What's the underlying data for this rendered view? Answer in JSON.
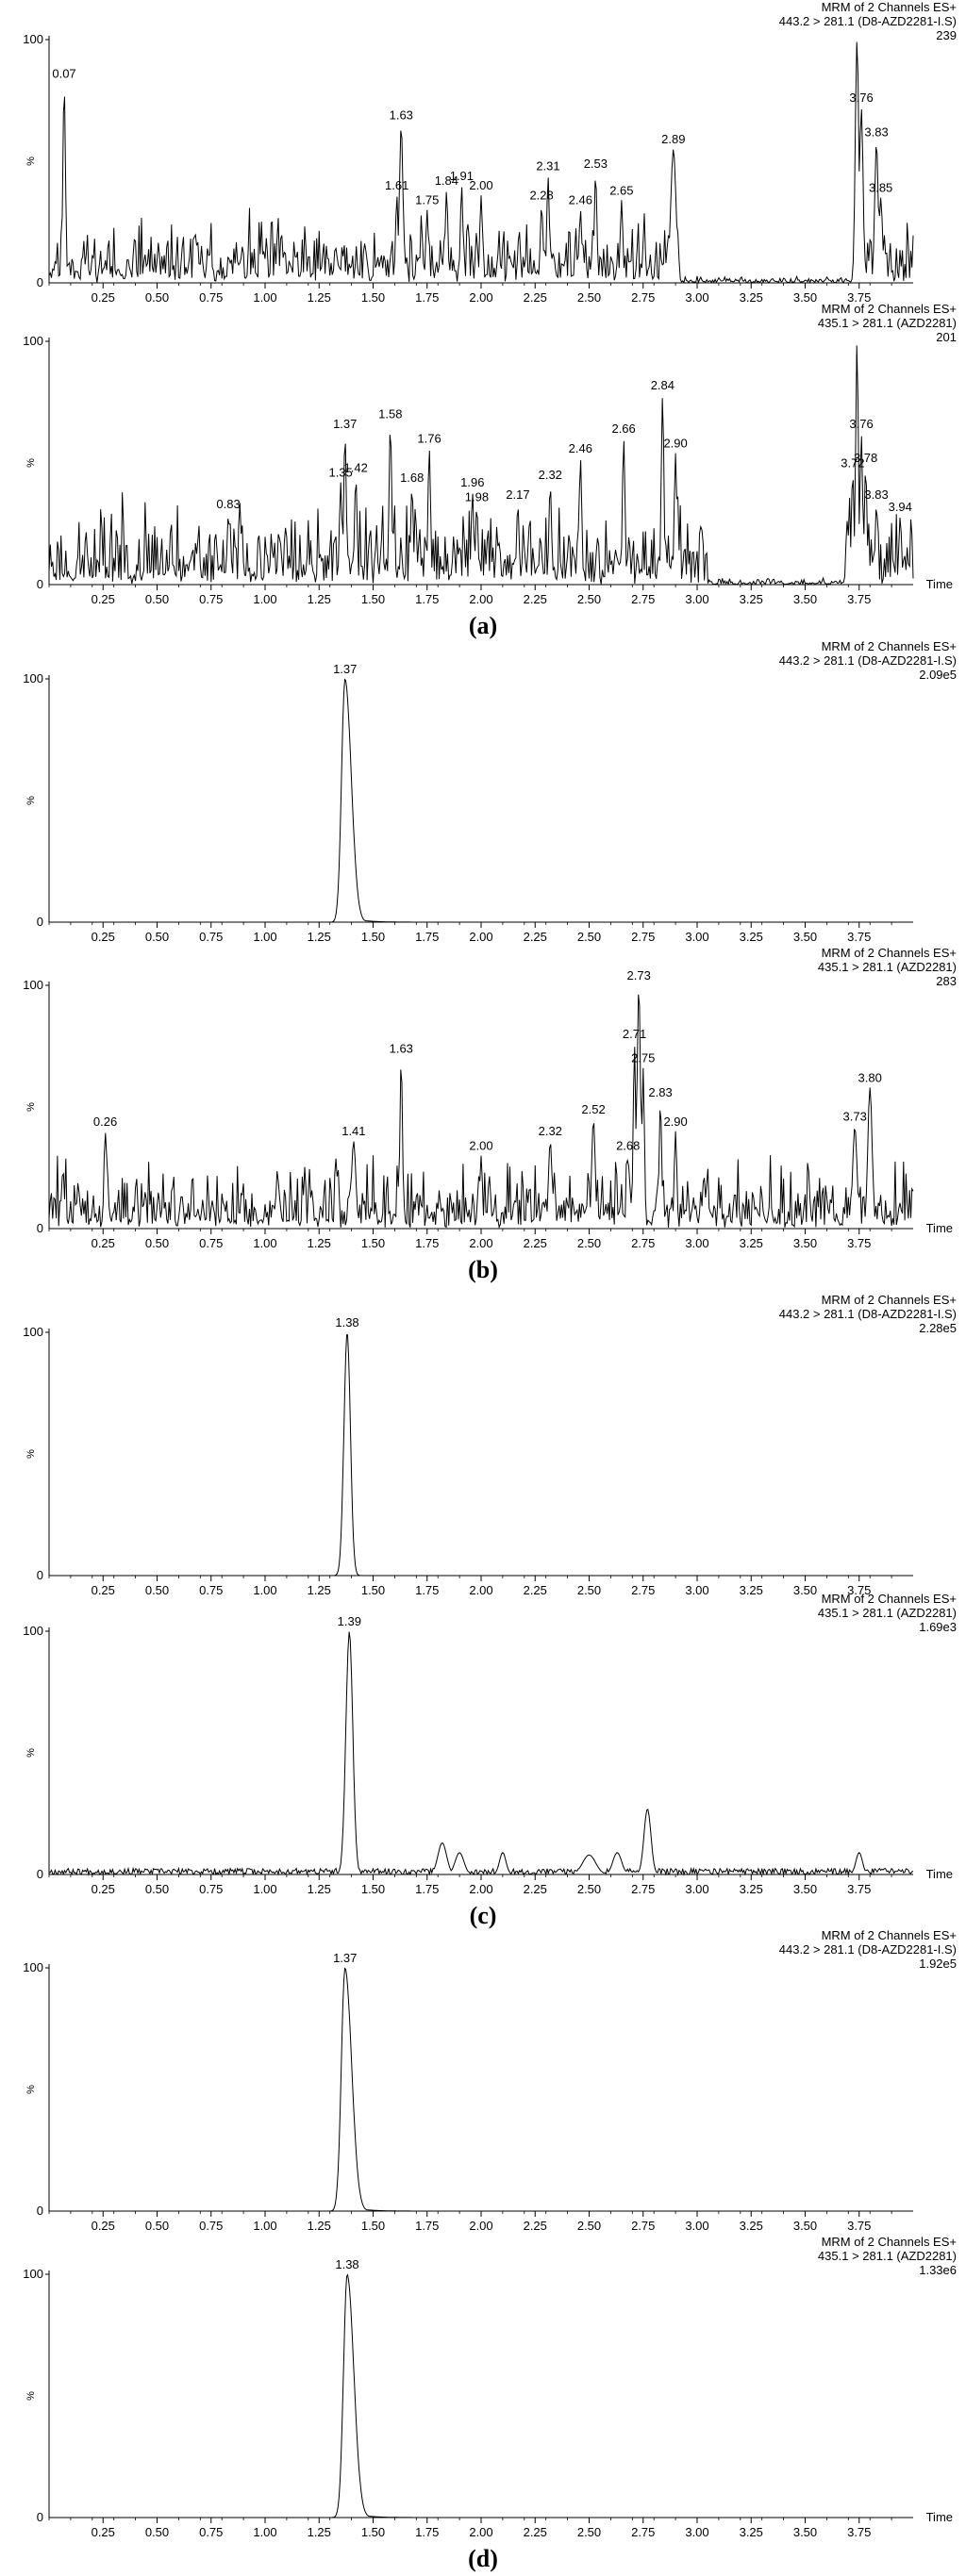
{
  "axis": {
    "x_ticks": [
      "0.25",
      "0.50",
      "0.75",
      "1.00",
      "1.25",
      "1.50",
      "1.75",
      "2.00",
      "2.25",
      "2.50",
      "2.75",
      "3.00",
      "3.25",
      "3.50",
      "3.75"
    ],
    "xlim": [
      0.0,
      4.0
    ],
    "y_ticks": [
      "0",
      "%",
      "100"
    ],
    "ylim": [
      0,
      100
    ],
    "time_label": "Time"
  },
  "chart_data": [
    {
      "type": "line",
      "panel": "a",
      "caption": "(a)",
      "title": "MRM of 2 Channels ES+",
      "transition": "443.2 > 281.1 (D8-AZD2281-I.S)",
      "intensity": "239",
      "show_time_label": false,
      "trace": "noise",
      "seed": 11,
      "noise_level": 12,
      "peaks": [
        {
          "rt": 0.07,
          "height": 82,
          "width": 0.006,
          "label": "0.07"
        },
        {
          "rt": 1.61,
          "height": 36,
          "width": 0.006,
          "label": "1.61"
        },
        {
          "rt": 1.63,
          "height": 65,
          "width": 0.008,
          "label": "1.63"
        },
        {
          "rt": 1.75,
          "height": 30,
          "width": 0.006,
          "label": "1.75"
        },
        {
          "rt": 1.84,
          "height": 38,
          "width": 0.006,
          "label": "1.84"
        },
        {
          "rt": 1.91,
          "height": 40,
          "width": 0.006,
          "label": "1.91"
        },
        {
          "rt": 2.0,
          "height": 36,
          "width": 0.006,
          "label": "2.00"
        },
        {
          "rt": 2.28,
          "height": 32,
          "width": 0.006,
          "label": "2.28"
        },
        {
          "rt": 2.31,
          "height": 44,
          "width": 0.006,
          "label": "2.31"
        },
        {
          "rt": 2.46,
          "height": 30,
          "width": 0.006,
          "label": "2.46"
        },
        {
          "rt": 2.53,
          "height": 45,
          "width": 0.006,
          "label": "2.53"
        },
        {
          "rt": 2.65,
          "height": 34,
          "width": 0.006,
          "label": "2.65"
        },
        {
          "rt": 2.89,
          "height": 55,
          "width": 0.012,
          "label": "2.89"
        },
        {
          "rt": 3.74,
          "height": 100,
          "width": 0.008,
          "label": ""
        },
        {
          "rt": 3.76,
          "height": 72,
          "width": 0.008,
          "label": "3.76"
        },
        {
          "rt": 3.83,
          "height": 58,
          "width": 0.008,
          "label": "3.83"
        },
        {
          "rt": 3.85,
          "height": 35,
          "width": 0.008,
          "label": "3.85"
        }
      ],
      "quiet": [
        [
          2.92,
          3.72
        ]
      ]
    },
    {
      "type": "line",
      "panel": "a",
      "caption": "",
      "title": "MRM of 2 Channels ES+",
      "transition": "435.1 > 281.1 (AZD2281)",
      "intensity": "201",
      "show_time_label": true,
      "trace": "noise",
      "seed": 23,
      "noise_level": 15,
      "peaks": [
        {
          "rt": 0.83,
          "height": 29,
          "width": 0.006,
          "label": "0.83"
        },
        {
          "rt": 1.35,
          "height": 42,
          "width": 0.006,
          "label": "1.35"
        },
        {
          "rt": 1.37,
          "height": 62,
          "width": 0.006,
          "label": "1.37"
        },
        {
          "rt": 1.42,
          "height": 44,
          "width": 0.006,
          "label": "1.42"
        },
        {
          "rt": 1.58,
          "height": 66,
          "width": 0.006,
          "label": "1.58"
        },
        {
          "rt": 1.68,
          "height": 40,
          "width": 0.006,
          "label": "1.68"
        },
        {
          "rt": 1.76,
          "height": 56,
          "width": 0.006,
          "label": "1.76"
        },
        {
          "rt": 1.96,
          "height": 38,
          "width": 0.006,
          "label": "1.96"
        },
        {
          "rt": 1.98,
          "height": 32,
          "width": 0.006,
          "label": "1.98"
        },
        {
          "rt": 2.17,
          "height": 33,
          "width": 0.006,
          "label": "2.17"
        },
        {
          "rt": 2.32,
          "height": 41,
          "width": 0.006,
          "label": "2.32"
        },
        {
          "rt": 2.46,
          "height": 52,
          "width": 0.006,
          "label": "2.46"
        },
        {
          "rt": 2.66,
          "height": 60,
          "width": 0.006,
          "label": "2.66"
        },
        {
          "rt": 2.84,
          "height": 78,
          "width": 0.006,
          "label": "2.84"
        },
        {
          "rt": 2.9,
          "height": 54,
          "width": 0.006,
          "label": "2.90"
        },
        {
          "rt": 3.72,
          "height": 46,
          "width": 0.006,
          "label": "3.72"
        },
        {
          "rt": 3.74,
          "height": 100,
          "width": 0.006,
          "label": ""
        },
        {
          "rt": 3.76,
          "height": 62,
          "width": 0.006,
          "label": "3.76"
        },
        {
          "rt": 3.78,
          "height": 48,
          "width": 0.006,
          "label": "3.78"
        },
        {
          "rt": 3.83,
          "height": 33,
          "width": 0.006,
          "label": "3.83"
        },
        {
          "rt": 3.94,
          "height": 28,
          "width": 0.006,
          "label": "3.94"
        }
      ],
      "quiet": [
        [
          3.05,
          3.68
        ]
      ]
    },
    {
      "type": "line",
      "panel": "b",
      "caption": "(b)",
      "title": "MRM of 2 Channels ES+",
      "transition": "443.2 > 281.1 (D8-AZD2281-I.S)",
      "intensity": "2.09e5",
      "show_time_label": false,
      "trace": "clean",
      "seed": 31,
      "noise_level": 0,
      "peaks": [
        {
          "rt": 1.37,
          "height": 100,
          "width": 0.016,
          "tail": true,
          "label": "1.37"
        }
      ],
      "quiet": []
    },
    {
      "type": "line",
      "panel": "b",
      "caption": "",
      "title": "MRM of 2 Channels ES+",
      "transition": "435.1 > 281.1 (AZD2281)",
      "intensity": "283",
      "show_time_label": true,
      "trace": "noise",
      "seed": 47,
      "noise_level": 13,
      "peaks": [
        {
          "rt": 0.26,
          "height": 40,
          "width": 0.006,
          "label": "0.26"
        },
        {
          "rt": 1.41,
          "height": 36,
          "width": 0.01,
          "label": "1.41"
        },
        {
          "rt": 1.63,
          "height": 70,
          "width": 0.006,
          "label": "1.63"
        },
        {
          "rt": 2.0,
          "height": 30,
          "width": 0.006,
          "label": "2.00"
        },
        {
          "rt": 2.32,
          "height": 36,
          "width": 0.008,
          "label": "2.32"
        },
        {
          "rt": 2.52,
          "height": 45,
          "width": 0.008,
          "label": "2.52"
        },
        {
          "rt": 2.68,
          "height": 30,
          "width": 0.006,
          "label": "2.68"
        },
        {
          "rt": 2.71,
          "height": 76,
          "width": 0.006,
          "label": "2.71"
        },
        {
          "rt": 2.73,
          "height": 100,
          "width": 0.008,
          "label": "2.73"
        },
        {
          "rt": 2.75,
          "height": 66,
          "width": 0.006,
          "label": "2.75"
        },
        {
          "rt": 2.83,
          "height": 52,
          "width": 0.006,
          "label": "2.83"
        },
        {
          "rt": 2.9,
          "height": 40,
          "width": 0.006,
          "label": "2.90"
        },
        {
          "rt": 3.73,
          "height": 42,
          "width": 0.01,
          "label": "3.73"
        },
        {
          "rt": 3.8,
          "height": 58,
          "width": 0.01,
          "label": "3.80"
        }
      ],
      "quiet": []
    },
    {
      "type": "line",
      "panel": "c",
      "caption": "(c)",
      "title": "MRM of 2 Channels ES+",
      "transition": "443.2 > 281.1 (D8-AZD2281-I.S)",
      "intensity": "2.28e5",
      "show_time_label": false,
      "trace": "clean",
      "seed": 53,
      "noise_level": 0,
      "peaks": [
        {
          "rt": 1.38,
          "height": 100,
          "width": 0.015,
          "tail": false,
          "label": "1.38"
        }
      ],
      "quiet": []
    },
    {
      "type": "line",
      "panel": "c",
      "caption": "",
      "title": "MRM of 2 Channels ES+",
      "transition": "435.1 > 281.1 (AZD2281)",
      "intensity": "1.69e3",
      "show_time_label": true,
      "trace": "lownoise",
      "seed": 67,
      "noise_level": 2.5,
      "peaks": [
        {
          "rt": 1.39,
          "height": 100,
          "width": 0.016,
          "label": "1.39"
        },
        {
          "rt": 1.82,
          "height": 13,
          "width": 0.02,
          "label": ""
        },
        {
          "rt": 1.9,
          "height": 9,
          "width": 0.02,
          "label": ""
        },
        {
          "rt": 2.1,
          "height": 9,
          "width": 0.015,
          "label": ""
        },
        {
          "rt": 2.5,
          "height": 8,
          "width": 0.03,
          "label": ""
        },
        {
          "rt": 2.63,
          "height": 9,
          "width": 0.02,
          "label": ""
        },
        {
          "rt": 2.77,
          "height": 27,
          "width": 0.016,
          "label": ""
        },
        {
          "rt": 3.75,
          "height": 9,
          "width": 0.015,
          "label": ""
        }
      ],
      "quiet": []
    },
    {
      "type": "line",
      "panel": "d",
      "caption": "(d)",
      "title": "MRM of 2 Channels ES+",
      "transition": "443.2 > 281.1 (D8-AZD2281-I.S)",
      "intensity": "1.92e5",
      "show_time_label": false,
      "trace": "clean",
      "seed": 71,
      "noise_level": 0,
      "peaks": [
        {
          "rt": 1.37,
          "height": 100,
          "width": 0.017,
          "tail": true,
          "label": "1.37"
        }
      ],
      "quiet": []
    },
    {
      "type": "line",
      "panel": "d",
      "caption": "",
      "title": "MRM of 2 Channels ES+",
      "transition": "435.1 > 281.1 (AZD2281)",
      "intensity": "1.33e6",
      "show_time_label": true,
      "trace": "clean",
      "seed": 83,
      "noise_level": 0,
      "peaks": [
        {
          "rt": 1.38,
          "height": 100,
          "width": 0.017,
          "tail": true,
          "label": "1.38"
        }
      ],
      "quiet": []
    }
  ]
}
